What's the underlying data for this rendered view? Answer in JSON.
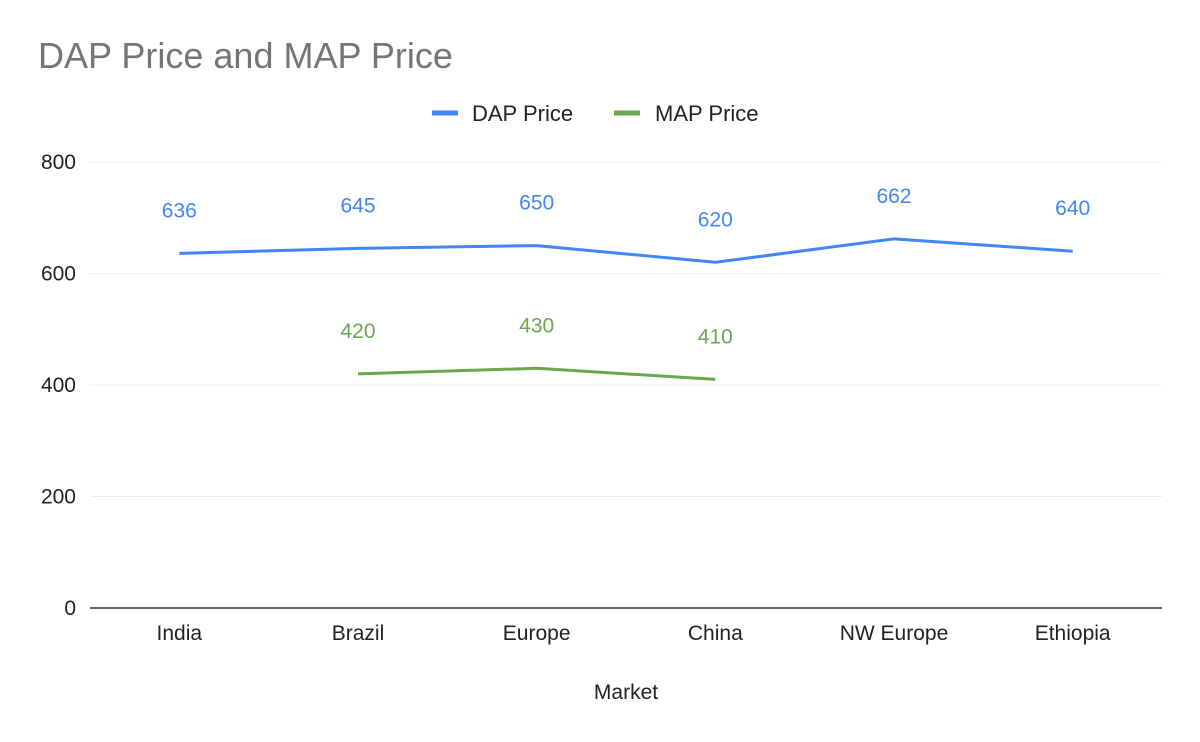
{
  "chart_data": {
    "type": "line",
    "title": "DAP Price and MAP Price",
    "xlabel": "Market",
    "ylabel": "",
    "categories": [
      "India",
      "Brazil",
      "Europe",
      "China",
      "NW Europe",
      "Ethiopia"
    ],
    "ylim": [
      0,
      800
    ],
    "yticks": [
      0,
      200,
      400,
      600,
      800
    ],
    "grid": true,
    "legend_position": "top",
    "series": [
      {
        "name": "DAP Price",
        "color": "#4285f4",
        "values": [
          636,
          645,
          650,
          620,
          662,
          640
        ],
        "labels": [
          "636",
          "645",
          "650",
          "620",
          "662",
          "640"
        ]
      },
      {
        "name": "MAP Price",
        "color": "#6aa84f",
        "values": [
          null,
          420,
          430,
          410,
          null,
          null
        ],
        "labels": [
          "",
          "420",
          "430",
          "410",
          "",
          ""
        ]
      }
    ]
  }
}
